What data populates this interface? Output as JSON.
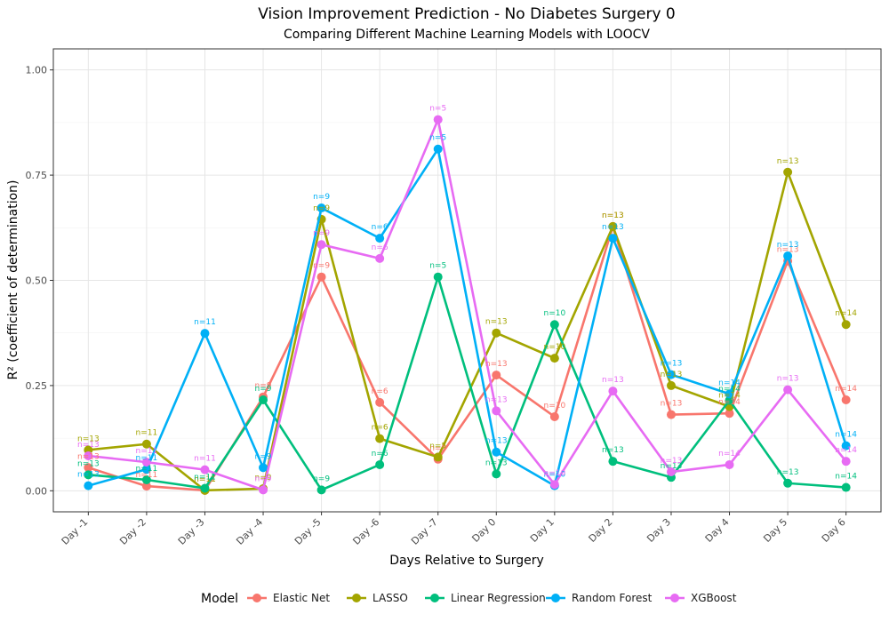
{
  "chart_data": {
    "type": "line",
    "title": "Vision Improvement Prediction - No Diabetes Surgery 0",
    "subtitle": "Comparing Different Machine Learning Models with LOOCV",
    "xlabel": "Days Relative to Surgery",
    "ylabel": "R² (coefficient of determination)",
    "ylim": [
      0,
      1
    ],
    "yticks": [
      "0.00",
      "0.25",
      "0.50",
      "0.75",
      "1.00"
    ],
    "yticks_values": [
      0,
      0.25,
      0.5,
      0.75,
      1.0
    ],
    "grid": true,
    "legend_position": "bottom",
    "legend_title": "Model",
    "categories": [
      "Day -1",
      "Day -2",
      "Day -3",
      "Day -4",
      "Day -5",
      "Day -6",
      "Day -7",
      "Day 0",
      "Day 1",
      "Day 2",
      "Day 3",
      "Day 4",
      "Day 5",
      "Day 6"
    ],
    "series": [
      {
        "name": "Elastic Net",
        "color": "#F8766D",
        "values": [
          0.055,
          0.011,
          0.001,
          0.223,
          0.508,
          0.21,
          0.075,
          0.275,
          0.176,
          0.628,
          0.181,
          0.184,
          0.546,
          0.216
        ],
        "n_labels": [
          "n=13",
          "n=11",
          "n=11",
          "n=9",
          "n=9",
          "n=6",
          "n=5",
          "n=13",
          "n=10",
          "n=13",
          "n=13",
          "n=14",
          "n=13",
          "n=14"
        ]
      },
      {
        "name": "LASSO",
        "color": "#A3A500",
        "values": [
          0.097,
          0.111,
          0.001,
          0.005,
          0.645,
          0.124,
          0.08,
          0.375,
          0.315,
          0.628,
          0.25,
          0.2,
          0.757,
          0.395
        ],
        "n_labels": [
          "n=13",
          "n=11",
          "n=11",
          "n=9",
          "n=9",
          "n=6",
          "n=5",
          "n=13",
          "n=10",
          "n=13",
          "n=13",
          "n=14",
          "n=13",
          "n=14"
        ]
      },
      {
        "name": "Linear Regression",
        "color": "#00BF7D",
        "values": [
          0.038,
          0.026,
          0.006,
          0.216,
          0.002,
          0.062,
          0.508,
          0.04,
          0.395,
          0.07,
          0.032,
          0.215,
          0.018,
          0.008
        ],
        "n_labels": [
          "n=13",
          "n=11",
          "n=11",
          "n=9",
          "n=9",
          "n=6",
          "n=5",
          "n=13",
          "n=10",
          "n=13",
          "n=13",
          "n=14",
          "n=13",
          "n=14"
        ]
      },
      {
        "name": "Random Forest",
        "color": "#00B0F6",
        "values": [
          0.012,
          0.051,
          0.374,
          0.055,
          0.672,
          0.6,
          0.812,
          0.092,
          0.012,
          0.6,
          0.276,
          0.23,
          0.558,
          0.107
        ],
        "n_labels": [
          "n=13",
          "n=11",
          "n=11",
          "n=9",
          "n=9",
          "n=6",
          "n=5",
          "n=13",
          "n=10",
          "n=13",
          "n=13",
          "n=14",
          "n=13",
          "n=14"
        ]
      },
      {
        "name": "XGBoost",
        "color": "#E76BF3",
        "values": [
          0.083,
          0.068,
          0.05,
          0.002,
          0.585,
          0.552,
          0.882,
          0.19,
          0.015,
          0.237,
          0.045,
          0.062,
          0.24,
          0.07
        ],
        "n_labels": [
          "n=13",
          "n=11",
          "n=11",
          "n=9",
          "n=9",
          "n=6",
          "n=5",
          "n=13",
          "n=10",
          "n=13",
          "n=13",
          "n=14",
          "n=13",
          "n=14"
        ]
      }
    ]
  }
}
